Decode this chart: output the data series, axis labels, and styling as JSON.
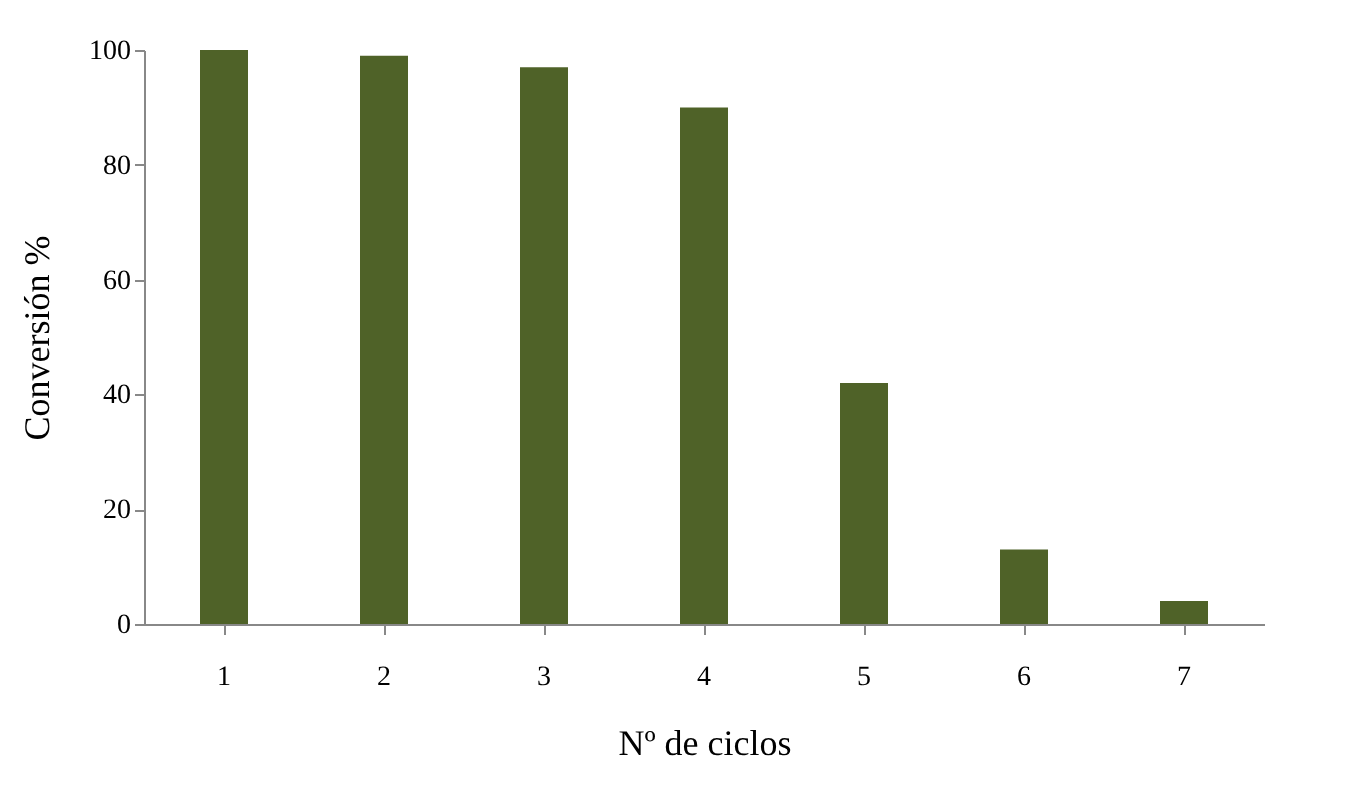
{
  "chart_data": {
    "type": "bar",
    "xlabel": "Nº de ciclos",
    "ylabel": "Conversión %",
    "categories": [
      "1",
      "2",
      "3",
      "4",
      "5",
      "6",
      "7"
    ],
    "values": [
      100,
      99,
      97,
      90,
      42,
      13,
      4
    ],
    "color": "#4f6228",
    "ylim": [
      0,
      100
    ],
    "yticks": [
      0,
      20,
      40,
      60,
      80,
      100
    ],
    "grid": false
  }
}
